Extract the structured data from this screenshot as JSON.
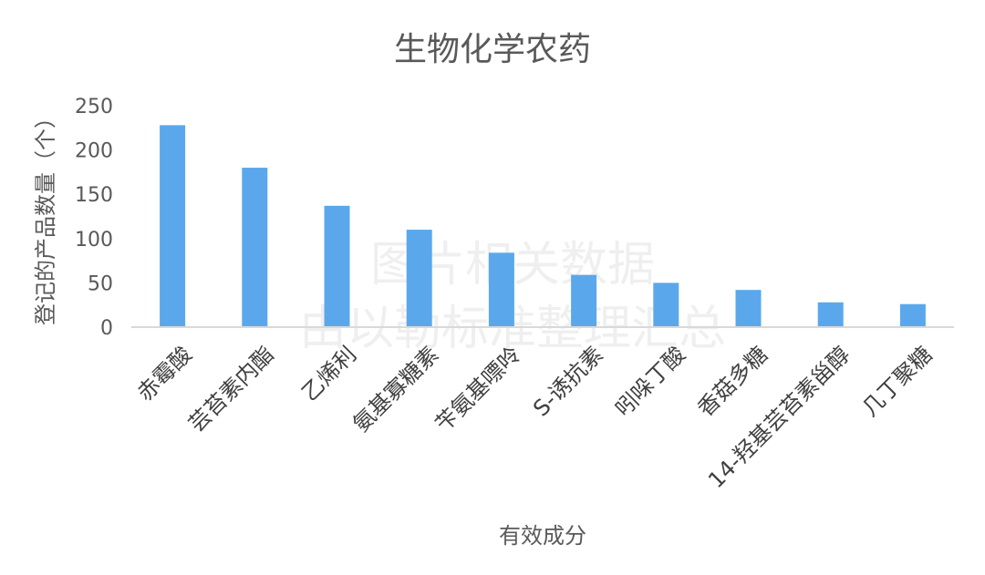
{
  "chart_data": {
    "type": "bar",
    "title": "生物化学农药",
    "xlabel": "有效成分",
    "ylabel": "登记的产品数量（个）",
    "categories": [
      "赤霉酸",
      "芸苔素内酯",
      "乙烯利",
      "氨基寡糖素",
      "苄氨基嘌呤",
      "S-诱抗素",
      "吲哚丁酸",
      "香菇多糖",
      "14-羟基芸苔素甾醇",
      "几丁聚糖"
    ],
    "values": [
      228,
      180,
      137,
      110,
      84,
      59,
      50,
      42,
      28,
      26
    ],
    "ylim": [
      0,
      250
    ],
    "yticks": [
      0,
      50,
      100,
      150,
      200,
      250
    ],
    "grid": false,
    "legend": "none",
    "bar_color": "#5aa8eb",
    "axis_color": "#d9d9d9"
  },
  "watermark": {
    "line1": "图片相关数据",
    "line2": "由以勒标准整理汇总"
  }
}
